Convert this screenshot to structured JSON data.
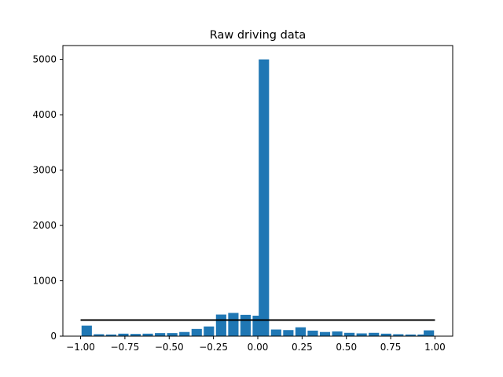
{
  "chart_data": {
    "type": "bar",
    "title": "Raw driving data",
    "xlabel": "",
    "ylabel": "",
    "xlim": [
      -1.1,
      1.1
    ],
    "ylim": [
      0,
      5250
    ],
    "xticks": [
      -1.0,
      -0.75,
      -0.5,
      -0.25,
      0.0,
      0.25,
      0.5,
      0.75,
      1.0
    ],
    "xtick_labels": [
      "−1.00",
      "−0.75",
      "−0.50",
      "−0.25",
      "0.00",
      "0.25",
      "0.50",
      "0.75",
      "1.00"
    ],
    "yticks": [
      0,
      1000,
      2000,
      3000,
      4000,
      5000
    ],
    "ytick_labels": [
      "0",
      "1000",
      "2000",
      "3000",
      "4000",
      "5000"
    ],
    "bar_width": 0.0583,
    "bars": [
      {
        "x": -0.9655,
        "value": 190
      },
      {
        "x": -0.8966,
        "value": 35
      },
      {
        "x": -0.8276,
        "value": 30
      },
      {
        "x": -0.7586,
        "value": 45
      },
      {
        "x": -0.6897,
        "value": 40
      },
      {
        "x": -0.6207,
        "value": 45
      },
      {
        "x": -0.5517,
        "value": 55
      },
      {
        "x": -0.4828,
        "value": 55
      },
      {
        "x": -0.4138,
        "value": 75
      },
      {
        "x": -0.3448,
        "value": 130
      },
      {
        "x": -0.2759,
        "value": 175
      },
      {
        "x": -0.2069,
        "value": 390
      },
      {
        "x": -0.1379,
        "value": 420
      },
      {
        "x": -0.069,
        "value": 385
      },
      {
        "x": 0.0,
        "value": 370
      },
      {
        "x": 0.0345,
        "value": 5000
      },
      {
        "x": 0.1034,
        "value": 120
      },
      {
        "x": 0.1724,
        "value": 110
      },
      {
        "x": 0.2414,
        "value": 160
      },
      {
        "x": 0.3103,
        "value": 100
      },
      {
        "x": 0.3793,
        "value": 75
      },
      {
        "x": 0.4483,
        "value": 85
      },
      {
        "x": 0.5172,
        "value": 60
      },
      {
        "x": 0.5862,
        "value": 50
      },
      {
        "x": 0.6552,
        "value": 60
      },
      {
        "x": 0.7241,
        "value": 45
      },
      {
        "x": 0.7931,
        "value": 35
      },
      {
        "x": 0.8621,
        "value": 30
      },
      {
        "x": 0.931,
        "value": 30
      },
      {
        "x": 0.9655,
        "value": 105
      }
    ],
    "reference_line": {
      "x_start": -1.0,
      "x_end": 1.0,
      "value": 290
    },
    "colors": {
      "bar": "#1f77b4",
      "line": "#000000"
    },
    "grid": false,
    "legend": "none"
  }
}
